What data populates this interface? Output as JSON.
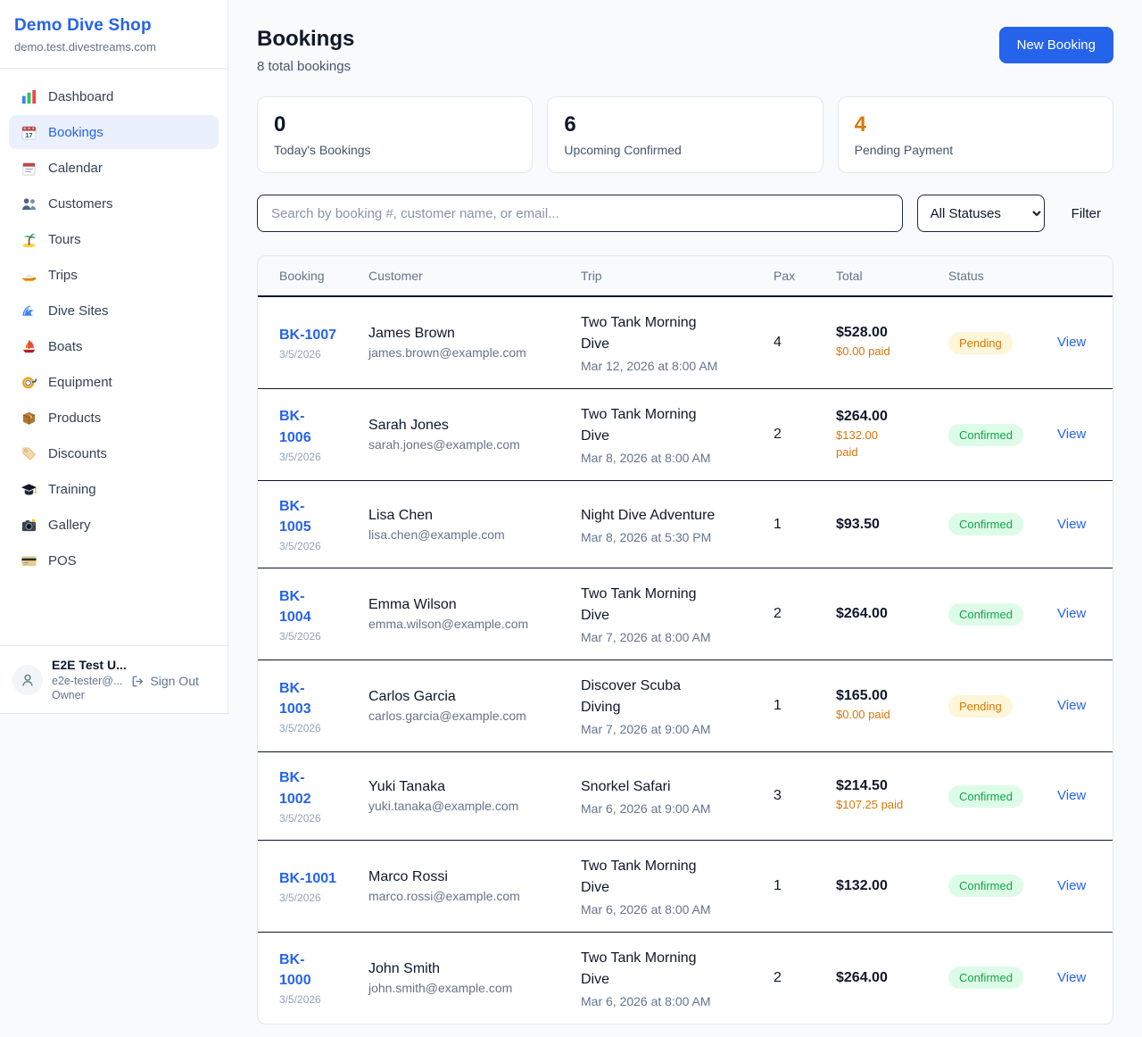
{
  "sidebar": {
    "brand": {
      "name": "Demo Dive Shop",
      "domain": "demo.test.divestreams.com"
    },
    "items": [
      {
        "label": "Dashboard",
        "icon": "bar-chart-icon",
        "active": false
      },
      {
        "label": "Bookings",
        "icon": "calendar-17-icon",
        "active": true
      },
      {
        "label": "Calendar",
        "icon": "calendar-pad-icon",
        "active": false
      },
      {
        "label": "Customers",
        "icon": "people-icon",
        "active": false
      },
      {
        "label": "Tours",
        "icon": "palm-island-icon",
        "active": false
      },
      {
        "label": "Trips",
        "icon": "speedboat-icon",
        "active": false
      },
      {
        "label": "Dive Sites",
        "icon": "wave-icon",
        "active": false
      },
      {
        "label": "Boats",
        "icon": "sailboat-icon",
        "active": false
      },
      {
        "label": "Equipment",
        "icon": "dive-mask-icon",
        "active": false
      },
      {
        "label": "Products",
        "icon": "package-icon",
        "active": false
      },
      {
        "label": "Discounts",
        "icon": "tag-icon",
        "active": false
      },
      {
        "label": "Training",
        "icon": "grad-cap-icon",
        "active": false
      },
      {
        "label": "Gallery",
        "icon": "camera-icon",
        "active": false
      },
      {
        "label": "POS",
        "icon": "credit-card-icon",
        "active": false
      }
    ],
    "user": {
      "name": "E2E Test U...",
      "email": "e2e-tester@...",
      "role": "Owner",
      "sign_out_label": "Sign Out"
    }
  },
  "header": {
    "title": "Bookings",
    "subtitle": "8 total bookings",
    "new_booking_label": "New Booking"
  },
  "stats": [
    {
      "value": "0",
      "label": "Today's Bookings",
      "value_color": "#0f172a"
    },
    {
      "value": "6",
      "label": "Upcoming Confirmed",
      "value_color": "#0f172a"
    },
    {
      "value": "4",
      "label": "Pending Payment",
      "value_color": "#d97706"
    }
  ],
  "filters": {
    "search_placeholder": "Search by booking #, customer name, or email...",
    "status_selected": "All Statuses",
    "filter_label": "Filter"
  },
  "table": {
    "columns": [
      "Booking",
      "Customer",
      "Trip",
      "Pax",
      "Total",
      "Status",
      ""
    ],
    "rows": [
      {
        "id": "BK-1007",
        "date": "3/5/2026",
        "customer": "James Brown",
        "email": "james.brown@example.com",
        "trip": "Two Tank Morning\nDive",
        "trip_time": "Mar 12, 2026 at 8:00 AM",
        "pax": "4",
        "total": "$528.00",
        "paid": "$0.00 paid",
        "status": "Pending",
        "action": "View"
      },
      {
        "id": "BK-\n1006",
        "date": "3/5/2026",
        "customer": "Sarah Jones",
        "email": "sarah.jones@example.com",
        "trip": "Two Tank Morning\nDive",
        "trip_time": "Mar 8, 2026 at 8:00 AM",
        "pax": "2",
        "total": "$264.00",
        "paid": "$132.00\npaid",
        "status": "Confirmed",
        "action": "View"
      },
      {
        "id": "BK-\n1005",
        "date": "3/5/2026",
        "customer": "Lisa Chen",
        "email": "lisa.chen@example.com",
        "trip": "Night Dive Adventure",
        "trip_time": "Mar 8, 2026 at 5:30 PM",
        "pax": "1",
        "total": "$93.50",
        "paid": null,
        "status": "Confirmed",
        "action": "View"
      },
      {
        "id": "BK-\n1004",
        "date": "3/5/2026",
        "customer": "Emma Wilson",
        "email": "emma.wilson@example.com",
        "trip": "Two Tank Morning\nDive",
        "trip_time": "Mar 7, 2026 at 8:00 AM",
        "pax": "2",
        "total": "$264.00",
        "paid": null,
        "status": "Confirmed",
        "action": "View"
      },
      {
        "id": "BK-\n1003",
        "date": "3/5/2026",
        "customer": "Carlos Garcia",
        "email": "carlos.garcia@example.com",
        "trip": "Discover Scuba\nDiving",
        "trip_time": "Mar 7, 2026 at 9:00 AM",
        "pax": "1",
        "total": "$165.00",
        "paid": "$0.00 paid",
        "status": "Pending",
        "action": "View"
      },
      {
        "id": "BK-\n1002",
        "date": "3/5/2026",
        "customer": "Yuki Tanaka",
        "email": "yuki.tanaka@example.com",
        "trip": "Snorkel Safari",
        "trip_time": "Mar 6, 2026 at 9:00 AM",
        "pax": "3",
        "total": "$214.50",
        "paid": "$107.25 paid",
        "status": "Confirmed",
        "action": "View"
      },
      {
        "id": "BK-1001",
        "date": "3/5/2026",
        "customer": "Marco Rossi",
        "email": "marco.rossi@example.com",
        "trip": "Two Tank Morning\nDive",
        "trip_time": "Mar 6, 2026 at 8:00 AM",
        "pax": "1",
        "total": "$132.00",
        "paid": null,
        "status": "Confirmed",
        "action": "View"
      },
      {
        "id": "BK-\n1000",
        "date": "3/5/2026",
        "customer": "John Smith",
        "email": "john.smith@example.com",
        "trip": "Two Tank Morning\nDive",
        "trip_time": "Mar 6, 2026 at 8:00 AM",
        "pax": "2",
        "total": "$264.00",
        "paid": null,
        "status": "Confirmed",
        "action": "View"
      }
    ]
  },
  "colors": {
    "accent_blue": "#2563eb",
    "pending_text": "#d97706",
    "pending_bg": "#fdf6d8",
    "confirmed_text": "#16a34a",
    "confirmed_bg": "#dcfce7",
    "row_border": "#0f172a"
  }
}
